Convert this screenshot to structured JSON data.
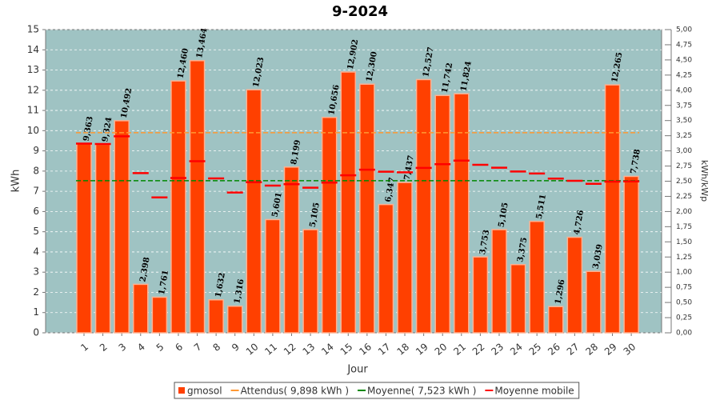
{
  "chart_data": {
    "type": "bar",
    "title": "9-2024",
    "x_label": "Jour",
    "y_label": "kWh",
    "y2_label": "kWh/kWp",
    "categories": [
      "1",
      "2",
      "3",
      "4",
      "5",
      "6",
      "7",
      "8",
      "9",
      "10",
      "11",
      "12",
      "13",
      "14",
      "15",
      "16",
      "17",
      "18",
      "19",
      "20",
      "21",
      "22",
      "23",
      "24",
      "25",
      "26",
      "27",
      "28",
      "29",
      "30"
    ],
    "series": [
      {
        "name": "gmosol",
        "color": "#ff4000",
        "style": "bar",
        "values": [
          9.363,
          9.324,
          10.492,
          2.398,
          1.761,
          12.46,
          13.464,
          1.632,
          1.316,
          12.023,
          5.601,
          8.199,
          5.105,
          10.656,
          12.902,
          12.3,
          6.347,
          7.437,
          12.527,
          11.742,
          11.824,
          3.753,
          5.105,
          3.375,
          5.511,
          1.296,
          4.726,
          3.039,
          12.265,
          7.738
        ],
        "value_labels": [
          "9,363",
          "9,324",
          "10,492",
          "2,398",
          "1,761",
          "12,460",
          "13,464",
          "1,632",
          "1,316",
          "12,023",
          "5,601",
          "8,199",
          "5,105",
          "10,656",
          "12,902",
          "12,300",
          "6,347",
          "7,437",
          "12,527",
          "11,742",
          "11,824",
          "3,753",
          "5,105",
          "3,375",
          "5,511",
          "1,296",
          "4,726",
          "3,039",
          "12,265",
          "7,738"
        ]
      },
      {
        "name": "Attendus( 9,898 kWh )",
        "color": "#ff9933",
        "style": "dashed",
        "values": [
          9.898,
          9.898,
          9.898,
          9.898,
          9.898,
          9.898,
          9.898,
          9.898,
          9.898,
          9.898,
          9.898,
          9.898,
          9.898,
          9.898,
          9.898,
          9.898,
          9.898,
          9.898,
          9.898,
          9.898,
          9.898,
          9.898,
          9.898,
          9.898,
          9.898,
          9.898,
          9.898,
          9.898,
          9.898,
          9.898
        ]
      },
      {
        "name": "Moyenne( 7,523 kWh )",
        "color": "#008800",
        "style": "dashed",
        "values": [
          7.523,
          7.523,
          7.523,
          7.523,
          7.523,
          7.523,
          7.523,
          7.523,
          7.523,
          7.523,
          7.523,
          7.523,
          7.523,
          7.523,
          7.523,
          7.523,
          7.523,
          7.523,
          7.523,
          7.523,
          7.523,
          7.523,
          7.523,
          7.523,
          7.523,
          7.523,
          7.523,
          7.523,
          7.523,
          7.523
        ]
      },
      {
        "name": "Moyenne mobile",
        "color": "#ff0000",
        "style": "ticks",
        "values": [
          9.36,
          9.34,
          9.72,
          7.9,
          6.7,
          7.66,
          8.49,
          7.64,
          6.94,
          7.45,
          7.28,
          7.35,
          7.18,
          7.43,
          7.79,
          8.07,
          7.97,
          7.94,
          8.16,
          8.34,
          8.52,
          8.31,
          8.17,
          7.98,
          7.88,
          7.63,
          7.52,
          7.37,
          7.48,
          7.49
        ]
      }
    ],
    "ylim": [
      0,
      15
    ],
    "yticks": [
      0,
      1,
      2,
      3,
      4,
      5,
      6,
      7,
      8,
      9,
      10,
      11,
      12,
      13,
      14,
      15
    ],
    "y2lim": [
      0,
      5
    ],
    "y2ticks": [
      {
        "value": 0,
        "label": "0,00"
      },
      {
        "value": 0.25,
        "label": "0,25"
      },
      {
        "value": 0.5,
        "label": "0,50"
      },
      {
        "value": 0.75,
        "label": "0,75"
      },
      {
        "value": 1,
        "label": "1,00"
      },
      {
        "value": 1.25,
        "label": "1,25"
      },
      {
        "value": 1.5,
        "label": "1,50"
      },
      {
        "value": 1.75,
        "label": "1,75"
      },
      {
        "value": 2,
        "label": "2,00"
      },
      {
        "value": 2.25,
        "label": "2,25"
      },
      {
        "value": 2.5,
        "label": "2,50"
      },
      {
        "value": 2.75,
        "label": "2,75"
      },
      {
        "value": 3,
        "label": "3,00"
      },
      {
        "value": 3.25,
        "label": "3,25"
      },
      {
        "value": 3.5,
        "label": "3,50"
      },
      {
        "value": 3.75,
        "label": "3,75"
      },
      {
        "value": 4,
        "label": "4,00"
      },
      {
        "value": 4.25,
        "label": "4,25"
      },
      {
        "value": 4.5,
        "label": "4,50"
      },
      {
        "value": 4.75,
        "label": "4,75"
      },
      {
        "value": 5,
        "label": "5,00"
      }
    ],
    "grid": true,
    "legend": "bottom"
  }
}
